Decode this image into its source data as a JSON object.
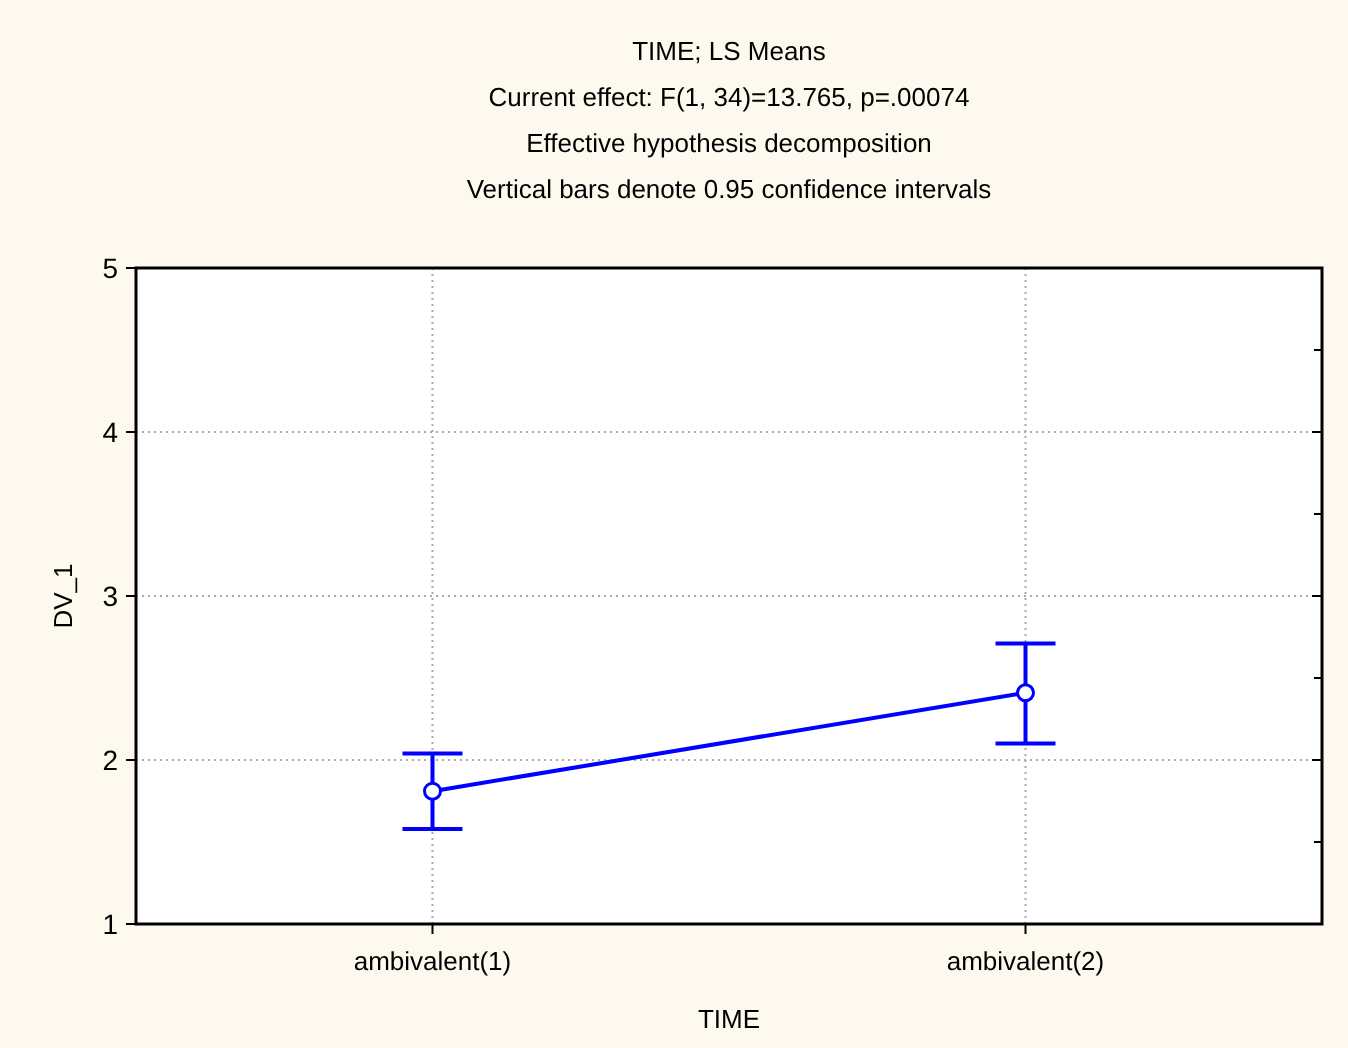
{
  "chart_data": {
    "type": "line",
    "title": "TIME; LS Means",
    "subtitle": "Current effect: F(1, 34)=13.765, p=.00074\nEffective hypothesis decomposition\nVertical bars denote 0.95 confidence intervals",
    "xlabel": "TIME",
    "ylabel": "DV_1",
    "categories": [
      "ambivalent(1)",
      "ambivalent(2)"
    ],
    "series": [
      {
        "color": "#0000ff",
        "values": [
          1.81,
          2.41
        ],
        "errors": [
          [
            1.58,
            2.04
          ],
          [
            2.1,
            2.71
          ]
        ]
      }
    ],
    "ylim": [
      1,
      5
    ],
    "yticks": [
      1,
      2,
      3,
      4,
      5
    ],
    "grid": true,
    "marker": "circle",
    "line_style": "solid"
  }
}
